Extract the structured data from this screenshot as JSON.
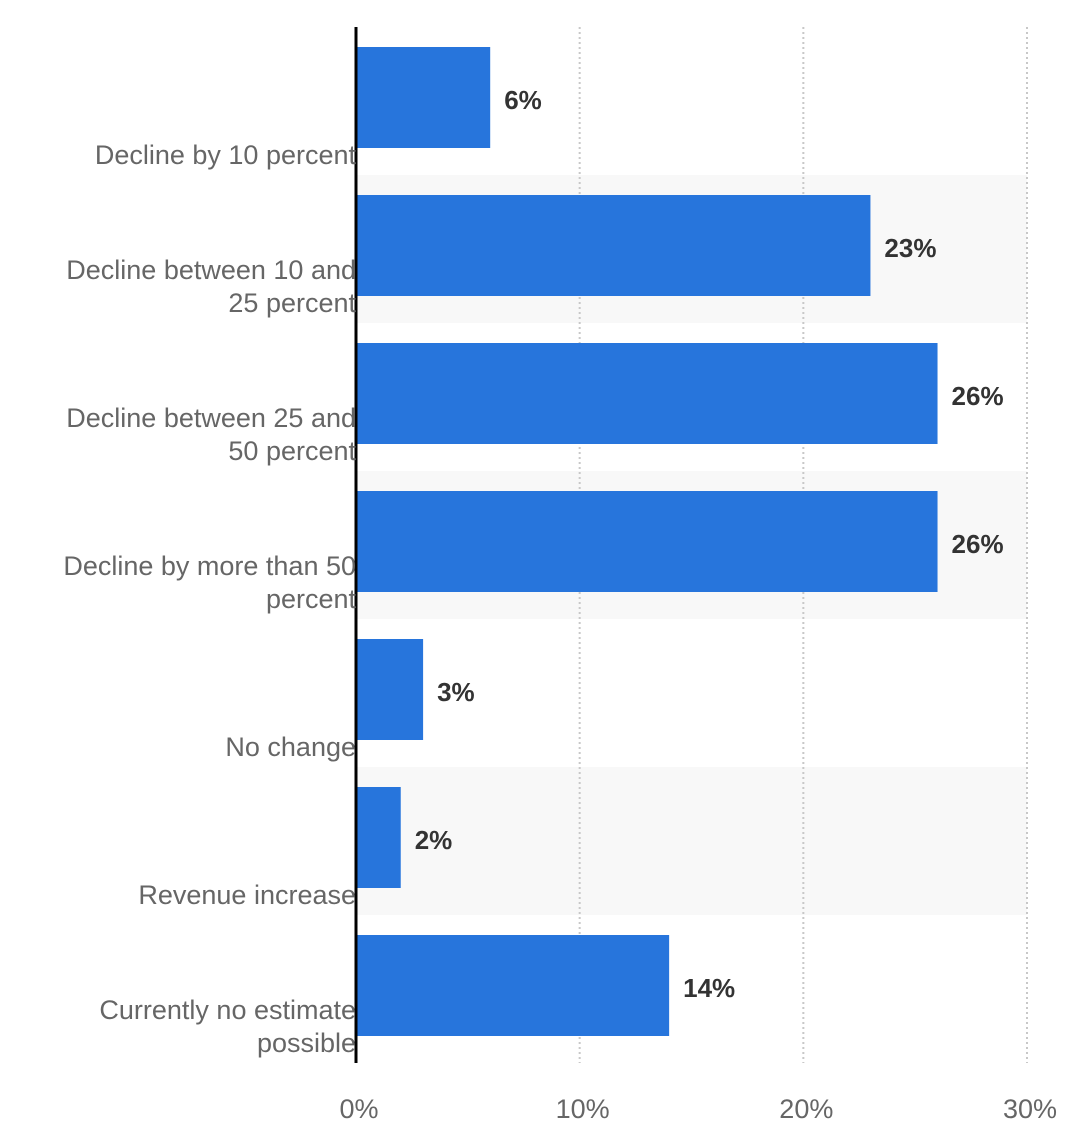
{
  "chart_data": {
    "type": "bar",
    "orientation": "horizontal",
    "categories": [
      "Decline by 10 percent",
      "Decline between 10 and 25 percent",
      "Decline between 25 and 50 percent",
      "Decline by more than 50 percent",
      "No change",
      "Revenue increase",
      "Currently no estimate possible"
    ],
    "values": [
      6,
      23,
      26,
      26,
      3,
      2,
      14
    ],
    "value_labels": [
      "6%",
      "23%",
      "26%",
      "26%",
      "3%",
      "2%",
      "14%"
    ],
    "color": "#2775dc",
    "xlim": [
      0,
      30
    ],
    "xticks": [
      {
        "value": 0,
        "label": "0%"
      },
      {
        "value": 10,
        "label": "10%"
      },
      {
        "value": 20,
        "label": "20%"
      },
      {
        "value": 30,
        "label": "30%"
      }
    ],
    "grid": true
  }
}
